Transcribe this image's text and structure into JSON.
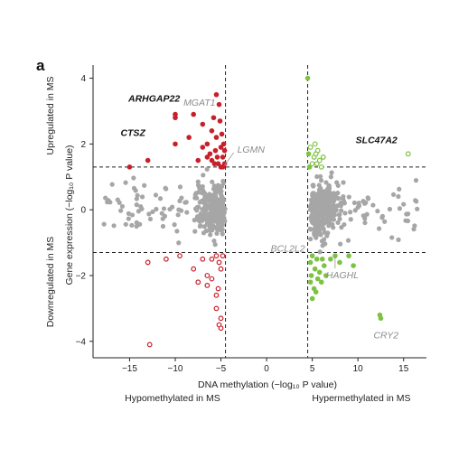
{
  "panel_label": "a",
  "chart_data": {
    "type": "scatter",
    "xlabel": "DNA methylation (−log₁₀ P value)",
    "ylabel": "Gene expression (−log₁₀ P value)",
    "xlim": [
      -19,
      17.5
    ],
    "ylim": [
      -4.5,
      4.4
    ],
    "x_ticks": [
      -15,
      -10,
      -5,
      0,
      5,
      10,
      15
    ],
    "x_tick_labels": [
      "−15",
      "−10",
      "−5",
      "0",
      "5",
      "10",
      "15"
    ],
    "y_ticks": [
      -4,
      -2,
      0,
      2,
      4
    ],
    "y_tick_labels": [
      "−4",
      "−2",
      "0",
      "2",
      "4"
    ],
    "thresholds": {
      "x": [
        -4.5,
        4.5
      ],
      "y": [
        1.3,
        -1.3
      ]
    },
    "quadrant_labels": {
      "top": "Upregulated in MS",
      "bottom": "Downregulated in MS",
      "left": "Hypomethylated in MS",
      "right": "Hypermethylated in MS"
    },
    "series": [
      {
        "color": "#c8202a",
        "marker": "filled",
        "points": [
          [
            -15,
            1.3
          ],
          [
            -13,
            1.5
          ],
          [
            -10,
            2.0
          ],
          [
            -10,
            2.8
          ],
          [
            -10,
            2.9
          ],
          [
            -8.5,
            2.2
          ],
          [
            -8,
            2.9
          ],
          [
            -7.5,
            1.5
          ],
          [
            -7,
            2.6
          ],
          [
            -7,
            1.9
          ],
          [
            -6.5,
            2.0
          ],
          [
            -6.5,
            1.6
          ],
          [
            -6,
            2.4
          ],
          [
            -6,
            1.5
          ],
          [
            -5.8,
            2.8
          ],
          [
            -5.6,
            1.8
          ],
          [
            -5.5,
            3.5
          ],
          [
            -5.5,
            2.2
          ],
          [
            -5.3,
            1.4
          ],
          [
            -5.2,
            3.2
          ],
          [
            -5.1,
            2.7
          ],
          [
            -5,
            1.9
          ],
          [
            -5,
            1.3
          ],
          [
            -4.9,
            2.3
          ],
          [
            -4.8,
            1.6
          ],
          [
            -4.7,
            2.0
          ],
          [
            -4.6,
            1.4
          ],
          [
            -4.6,
            1.8
          ],
          [
            -5.7,
            1.4
          ],
          [
            -6.2,
            1.7
          ],
          [
            -4.8,
            1.3
          ],
          [
            -5.4,
            1.6
          ]
        ]
      },
      {
        "color": "#c8202a",
        "marker": "open",
        "points": [
          [
            -13,
            -1.6
          ],
          [
            -12.8,
            -4.1
          ],
          [
            -11,
            -1.5
          ],
          [
            -9.5,
            -1.4
          ],
          [
            -8,
            -1.8
          ],
          [
            -7.5,
            -2.2
          ],
          [
            -7,
            -1.5
          ],
          [
            -6.5,
            -2.0
          ],
          [
            -6.5,
            -2.3
          ],
          [
            -6,
            -1.5
          ],
          [
            -6,
            -2.1
          ],
          [
            -5.5,
            -1.4
          ],
          [
            -5.5,
            -2.6
          ],
          [
            -5.5,
            -3.0
          ],
          [
            -5.2,
            -1.6
          ],
          [
            -5.2,
            -3.5
          ],
          [
            -5,
            -1.8
          ],
          [
            -5,
            -3.3
          ],
          [
            -5,
            -3.6
          ],
          [
            -4.8,
            -1.4
          ],
          [
            -5.3,
            -2.4
          ]
        ]
      },
      {
        "color": "#7dc242",
        "marker": "filled",
        "points": [
          [
            4.5,
            4.0
          ],
          [
            4.6,
            1.7
          ],
          [
            4.7,
            1.3
          ],
          [
            4.8,
            -1.6
          ],
          [
            4.9,
            -2.0
          ],
          [
            5.0,
            -1.4
          ],
          [
            5.0,
            -2.7
          ],
          [
            5.2,
            -2.4
          ],
          [
            5.3,
            -1.8
          ],
          [
            5.5,
            -1.5
          ],
          [
            5.6,
            -2.1
          ],
          [
            5.8,
            -1.9
          ],
          [
            6.0,
            -2.2
          ],
          [
            6.1,
            -1.5
          ],
          [
            6.3,
            -1.7
          ],
          [
            6.5,
            -2.0
          ],
          [
            7,
            -1.5
          ],
          [
            7.5,
            -1.4
          ],
          [
            8,
            -1.6
          ],
          [
            9,
            -1.4
          ],
          [
            9.5,
            -1.7
          ],
          [
            12.5,
            -3.3
          ],
          [
            12.4,
            -3.2
          ],
          [
            5.4,
            -2.5
          ],
          [
            4.8,
            -2.2
          ]
        ]
      },
      {
        "color": "#7dc242",
        "marker": "open",
        "points": [
          [
            4.8,
            1.9
          ],
          [
            5,
            1.4
          ],
          [
            5.2,
            1.6
          ],
          [
            5.3,
            2.0
          ],
          [
            5.5,
            1.4
          ],
          [
            5.6,
            1.8
          ],
          [
            5.8,
            1.5
          ],
          [
            6,
            1.3
          ],
          [
            6.2,
            1.6
          ],
          [
            15.5,
            1.7
          ],
          [
            5.4,
            1.7
          ]
        ]
      }
    ],
    "annotations": [
      {
        "text": "ARHGAP22",
        "x": -10,
        "y": 2.9,
        "style": "black"
      },
      {
        "text": "CTSZ",
        "x": -15,
        "y": 2.6,
        "style": "black"
      },
      {
        "text": "MGAT1",
        "x": -5.5,
        "y": 3.5,
        "style": "grey"
      },
      {
        "text": "LGMN",
        "x": -4.6,
        "y": 1.4,
        "style": "grey"
      },
      {
        "text": "SLC47A2",
        "x": 15.5,
        "y": 1.7,
        "style": "black"
      },
      {
        "text": "BCL2L2",
        "x": 4.8,
        "y": -1.6,
        "style": "grey"
      },
      {
        "text": "HAGHL",
        "x": 7.5,
        "y": -1.4,
        "style": "grey"
      },
      {
        "text": "CRY2",
        "x": 12.5,
        "y": -3.3,
        "style": "grey"
      }
    ],
    "grey_color": "#a6a6a6"
  }
}
